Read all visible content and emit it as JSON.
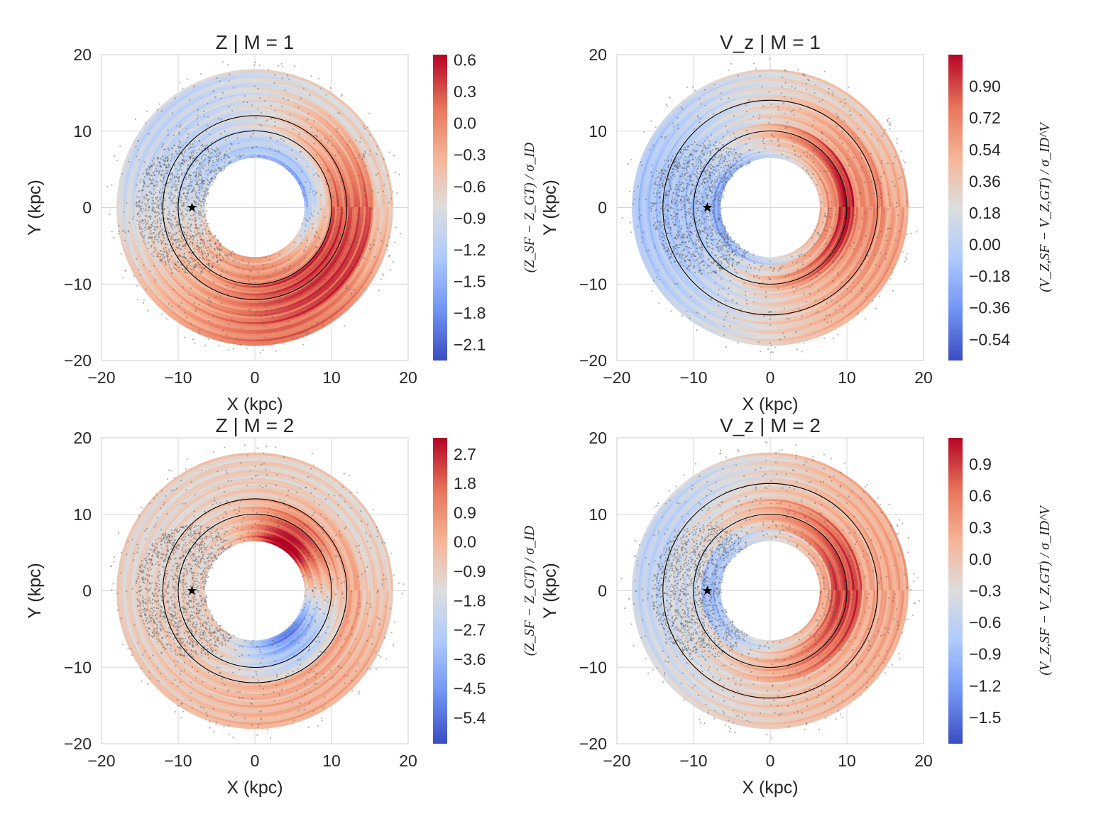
{
  "figure": {
    "colormap": [
      "#3b4cc0",
      "#7396f5",
      "#b0cbfc",
      "#dddddd",
      "#f6b698",
      "#e7745b",
      "#b40426"
    ],
    "sun_marker": "star-icon",
    "panels": [
      {
        "title": "Z | M = 1",
        "xlabel": "X (kpc)",
        "ylabel": "Y (kpc)",
        "cbar_label": "(Z_SF − Z_GT) / σ_ID",
        "cbar_ticks": [
          "0.6",
          "0.3",
          "0.0",
          "−0.3",
          "−0.6",
          "−0.9",
          "−1.2",
          "−1.5",
          "−1.8",
          "−2.1"
        ],
        "cbar_tick_values": [
          0.6,
          0.3,
          0.0,
          -0.3,
          -0.6,
          -0.9,
          -1.2,
          -1.5,
          -1.8,
          -2.1
        ]
      },
      {
        "title": "V_z | M = 1",
        "xlabel": "X (kpc)",
        "ylabel": "Y (kpc)",
        "cbar_label": "(V_Z,SF − V_Z,GT) / σ_ID^V",
        "cbar_ticks": [
          "0.90",
          "0.72",
          "0.54",
          "0.36",
          "0.18",
          "0.00",
          "−0.18",
          "−0.36",
          "−0.54"
        ],
        "cbar_tick_values": [
          0.9,
          0.72,
          0.54,
          0.36,
          0.18,
          0.0,
          -0.18,
          -0.36,
          -0.54
        ]
      },
      {
        "title": "Z | M = 2",
        "xlabel": "X (kpc)",
        "ylabel": "Y (kpc)",
        "cbar_label": "(Z_SF − Z_GT) / σ_ID",
        "cbar_ticks": [
          "2.7",
          "1.8",
          "0.9",
          "0.0",
          "−0.9",
          "−1.8",
          "−2.7",
          "−3.6",
          "−4.5",
          "−5.4"
        ],
        "cbar_tick_values": [
          2.7,
          1.8,
          0.9,
          0.0,
          -0.9,
          -1.8,
          -2.7,
          -3.6,
          -4.5,
          -5.4
        ]
      },
      {
        "title": "V_z | M = 2",
        "xlabel": "X (kpc)",
        "ylabel": "Y (kpc)",
        "cbar_label": "(V_Z,SF − V_Z,GT) / σ_ID^V",
        "cbar_ticks": [
          "0.9",
          "0.6",
          "0.3",
          "0.0",
          "−0.3",
          "−0.6",
          "−0.9",
          "−1.2",
          "−1.5"
        ],
        "cbar_tick_values": [
          0.9,
          0.6,
          0.3,
          0.0,
          -0.3,
          -0.6,
          -0.9,
          -1.2,
          -1.5
        ]
      }
    ]
  },
  "chart_data": [
    {
      "type": "heatmap",
      "title": "Z | M = 1",
      "xlabel": "X (kpc)",
      "ylabel": "Y (kpc)",
      "xlim": [
        -20,
        20
      ],
      "ylim": [
        -20,
        20
      ],
      "xticks": [
        "−20",
        "−10",
        "0",
        "10",
        "20"
      ],
      "yticks": [
        "20",
        "10",
        "0",
        "−10",
        "−20"
      ],
      "colorbar_range": [
        -2.25,
        0.65
      ],
      "annulus_radii_kpc": [
        6.5,
        18
      ],
      "reference_circles_kpc": [
        10,
        12
      ],
      "sun_position_kpc": [
        -8.2,
        0
      ]
    },
    {
      "type": "heatmap",
      "title": "V_z | M = 1",
      "xlabel": "X (kpc)",
      "ylabel": "Y (kpc)",
      "xlim": [
        -20,
        20
      ],
      "ylim": [
        -20,
        20
      ],
      "xticks": [
        "−20",
        "−10",
        "0",
        "10",
        "20"
      ],
      "yticks": [
        "20",
        "10",
        "0",
        "−10",
        "−20"
      ],
      "colorbar_range": [
        -0.66,
        1.08
      ],
      "annulus_radii_kpc": [
        6.5,
        18
      ],
      "reference_circles_kpc": [
        10,
        14
      ],
      "sun_position_kpc": [
        -8.2,
        0
      ]
    },
    {
      "type": "heatmap",
      "title": "Z | M = 2",
      "xlabel": "X (kpc)",
      "ylabel": "Y (kpc)",
      "xlim": [
        -20,
        20
      ],
      "ylim": [
        -20,
        20
      ],
      "xticks": [
        "−20",
        "−10",
        "0",
        "10",
        "20"
      ],
      "yticks": [
        "20",
        "10",
        "0",
        "−10",
        "−20"
      ],
      "colorbar_range": [
        -6.2,
        3.2
      ],
      "annulus_radii_kpc": [
        6.5,
        18
      ],
      "reference_circles_kpc": [
        10,
        12
      ],
      "sun_position_kpc": [
        -8.2,
        0
      ]
    },
    {
      "type": "heatmap",
      "title": "V_z | M = 2",
      "xlabel": "X (kpc)",
      "ylabel": "Y (kpc)",
      "xlim": [
        -20,
        20
      ],
      "ylim": [
        -20,
        20
      ],
      "xticks": [
        "−20",
        "−10",
        "0",
        "10",
        "20"
      ],
      "yticks": [
        "20",
        "10",
        "0",
        "−10",
        "−20"
      ],
      "colorbar_range": [
        -1.75,
        1.15
      ],
      "annulus_radii_kpc": [
        6.5,
        18
      ],
      "reference_circles_kpc": [
        10,
        14
      ],
      "sun_position_kpc": [
        -8.2,
        0
      ]
    }
  ]
}
